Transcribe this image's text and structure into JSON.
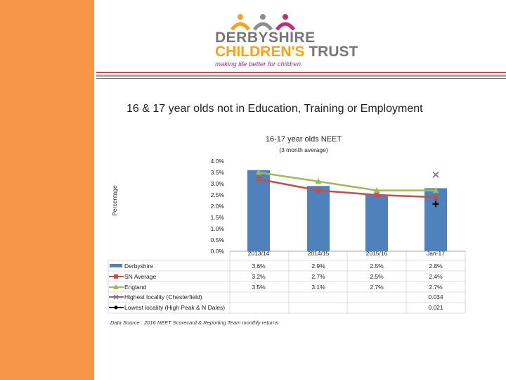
{
  "logo": {
    "line1": "DERBYSHIRE",
    "line2a": "CHILDREN'S",
    "line2b": " TRUST",
    "tagline": "making life better for children"
  },
  "slide_title": "16 & 17 year olds not in Education, Training or Employment",
  "source_note": "Data Source : 2016 NEET Scorecard & Reporting Team monthly returns",
  "colors": {
    "side_bar": "#f79646",
    "derbyshire": "#4f81bd",
    "sn": "#c0504d",
    "england": "#9bbb59",
    "highest": "#8064a2",
    "lowest": "#000000"
  },
  "chart_data": {
    "type": "bar",
    "title": "16-17 year olds NEET",
    "subtitle": "(3 month average)",
    "xlabel": "",
    "ylabel": "Percentage",
    "ylim": [
      0,
      4
    ],
    "y_ticks": [
      "4.0%",
      "3.5%",
      "3.0%",
      "2.5%",
      "2.0%",
      "1.5%",
      "1.0%",
      "0.5%",
      "0.0%"
    ],
    "categories": [
      "2013/14",
      "2014/15",
      "2015/16",
      "Jan-17"
    ],
    "series": [
      {
        "name": "Derbyshire",
        "kind": "bar",
        "values": [
          3.6,
          2.9,
          2.5,
          2.8
        ],
        "labels": [
          "3.6%",
          "2.9%",
          "2.5%",
          "2.8%"
        ]
      },
      {
        "name": "SN Average",
        "kind": "line",
        "marker": "square",
        "values": [
          3.2,
          2.7,
          2.5,
          2.4
        ],
        "labels": [
          "3.2%",
          "2.7%",
          "2.5%",
          "2.4%"
        ]
      },
      {
        "name": "England",
        "kind": "line",
        "marker": "triangle",
        "values": [
          3.5,
          3.1,
          2.7,
          2.7
        ],
        "labels": [
          "3.5%",
          "3.1%",
          "2.7%",
          "2.7%"
        ]
      },
      {
        "name": "Highest locality (Chesterfield)",
        "kind": "marker",
        "marker": "x",
        "values": [
          null,
          null,
          null,
          3.4
        ],
        "labels": [
          "",
          "",
          "",
          "0.034"
        ]
      },
      {
        "name": "Lowest locality (High Peak & N Dales)",
        "kind": "marker",
        "marker": "plus",
        "values": [
          null,
          null,
          null,
          2.1
        ],
        "labels": [
          "",
          "",
          "",
          "0.021"
        ]
      }
    ]
  }
}
